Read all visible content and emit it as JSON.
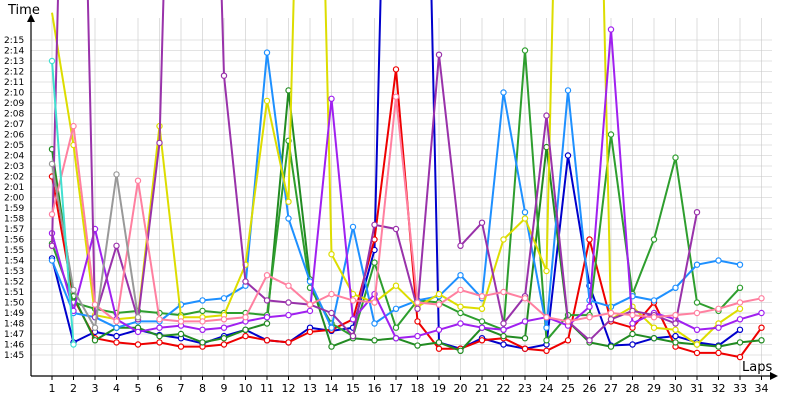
{
  "chart_data": {
    "type": "line",
    "title": "",
    "ylabel": "Time",
    "xlabel": "Laps",
    "x": [
      1,
      2,
      3,
      4,
      5,
      6,
      7,
      8,
      9,
      10,
      11,
      12,
      13,
      14,
      15,
      16,
      17,
      18,
      19,
      20,
      21,
      22,
      23,
      24,
      25,
      26,
      27,
      28,
      29,
      30,
      31,
      32,
      33,
      34
    ],
    "xlim": [
      0,
      34
    ],
    "ylim_seconds": [
      104,
      136
    ],
    "y_ticks": [
      "1:45",
      "1:46",
      "1:47",
      "1:48",
      "1:49",
      "1:50",
      "1:51",
      "1:52",
      "1:53",
      "1:54",
      "1:55",
      "1:56",
      "1:57",
      "1:58",
      "1:59",
      "2:00",
      "2:01",
      "2:02",
      "2:03",
      "2:04",
      "2:05",
      "2:06",
      "2:07",
      "2:08",
      "2:09",
      "2:10",
      "2:11",
      "2:12",
      "2:13",
      "2:14",
      "2:15"
    ],
    "x_ticks": [
      "1",
      "2",
      "3",
      "4",
      "5",
      "6",
      "7",
      "8",
      "9",
      "10",
      "11",
      "12",
      "13",
      "14",
      "15",
      "16",
      "17",
      "18",
      "19",
      "20",
      "21",
      "22",
      "23",
      "24",
      "25",
      "26",
      "27",
      "28",
      "29",
      "30",
      "31",
      "32",
      "33",
      "34"
    ],
    "grid": true,
    "legend": "none",
    "series": [
      {
        "color": "#0000cc",
        "values": [
          114.2,
          106.2,
          107.2,
          106.8,
          107.4,
          106.9,
          106.6,
          106.1,
          106.8,
          107.4,
          106.4,
          106.2,
          107.6,
          107.3,
          107.6,
          115,
          200,
          200,
          106.2,
          105.6,
          106.6,
          106.0,
          105.6,
          106.0,
          124.0,
          111.6,
          105.9,
          106.0,
          106.6,
          106.8,
          106.2,
          105.9,
          107.4,
          null
        ]
      },
      {
        "color": "#ee0000",
        "values": [
          122.0,
          110.4,
          106.6,
          106.2,
          106.0,
          106.2,
          105.8,
          105.8,
          106.0,
          106.8,
          106.4,
          106.2,
          107.2,
          107.4,
          108.4,
          116.0,
          132.2,
          108.2,
          105.6,
          105.6,
          106.4,
          106.6,
          105.6,
          105.4,
          106.4,
          116.0,
          108.2,
          107.6,
          110.0,
          105.8,
          105.2,
          105.2,
          104.8,
          107.6
        ]
      },
      {
        "color": "#228b22",
        "values": [
          124.6,
          110.6,
          106.4,
          107.6,
          107.6,
          106.8,
          107.0,
          106.2,
          106.6,
          107.4,
          108.0,
          130.2,
          112.2,
          105.8,
          106.6,
          106.4,
          106.6,
          105.9,
          106.2,
          105.4,
          107.6,
          106.8,
          106.6,
          124.8,
          108.2,
          106.2,
          105.8,
          107.0,
          106.6,
          106.2,
          106.0,
          105.8,
          106.2,
          106.4
        ]
      },
      {
        "color": "#2e9e2e",
        "values": [
          115.6,
          110.0,
          109.4,
          109.0,
          109.2,
          109.0,
          108.8,
          109.2,
          109.0,
          109.0,
          108.8,
          125.4,
          111.4,
          108.0,
          106.8,
          113.8,
          107.6,
          110.2,
          110.0,
          109.0,
          108.2,
          107.4,
          134.0,
          106.4,
          108.8,
          108.8,
          126.0,
          110.8,
          116.0,
          123.8,
          110.0,
          109.2,
          111.4,
          null
        ]
      },
      {
        "color": "#1e90ff",
        "values": [
          114.0,
          109.0,
          108.6,
          107.6,
          108.2,
          108.2,
          109.8,
          110.2,
          110.4,
          111.6,
          133.8,
          118.0,
          112.0,
          107.6,
          117.2,
          108.0,
          109.4,
          110.2,
          110.6,
          112.6,
          110.4,
          130.0,
          118.6,
          107.6,
          130.2,
          110.2,
          109.6,
          110.6,
          110.2,
          111.4,
          113.6,
          114.0,
          113.6,
          null
        ]
      },
      {
        "color": "#dddd00",
        "values": [
          137.6,
          125.0,
          108.8,
          108.4,
          108.6,
          126.8,
          108.6,
          108.6,
          108.8,
          113.6,
          129.2,
          119.6,
          200,
          114.6,
          110.8,
          110.0,
          111.6,
          109.6,
          110.8,
          109.6,
          109.4,
          116.0,
          118.0,
          113.0,
          200,
          200,
          108.4,
          109.6,
          107.6,
          107.4,
          106.0,
          108.0,
          109.4,
          null
        ]
      },
      {
        "color": "#a020f0",
        "values": [
          116.6,
          109.2,
          117.0,
          108.4,
          107.2,
          107.6,
          107.8,
          107.4,
          107.6,
          108.2,
          108.6,
          108.8,
          109.2,
          129.4,
          108.4,
          110.8,
          106.6,
          106.8,
          107.4,
          108.0,
          107.6,
          107.4,
          108.2,
          108.6,
          107.8,
          109.6,
          136.0,
          108.0,
          109.0,
          108.4,
          107.4,
          107.6,
          108.4,
          109.0
        ]
      },
      {
        "color": "#9932aa",
        "values": [
          115.4,
          200,
          108.6,
          115.4,
          108.4,
          125.2,
          200,
          200,
          131.6,
          112.0,
          110.2,
          110.0,
          109.8,
          109.0,
          106.8,
          117.4,
          117.0,
          109.4,
          133.6,
          115.4,
          117.6,
          108.0,
          110.6,
          127.8,
          108.2,
          106.4,
          108.4,
          109.2,
          108.8,
          108.0,
          118.6,
          null,
          null,
          null
        ]
      },
      {
        "color": "#d030d0",
        "values": [
          null,
          null,
          null,
          null,
          null,
          null,
          null,
          null,
          null,
          null,
          null,
          null,
          null,
          null,
          null,
          null,
          null,
          null,
          null,
          null,
          null,
          null,
          null,
          null,
          null,
          null,
          null,
          null,
          null,
          null,
          null,
          null,
          null,
          null
        ]
      },
      {
        "color": "#ff80a0",
        "values": [
          118.4,
          126.8,
          109.8,
          108.2,
          121.6,
          108.4,
          108.2,
          108.2,
          108.4,
          108.6,
          112.6,
          111.6,
          109.8,
          110.8,
          110.2,
          110.0,
          129.6,
          110.0,
          109.8,
          111.2,
          110.6,
          111.0,
          110.4,
          108.6,
          108.2,
          108.6,
          109.0,
          108.8,
          108.6,
          108.8,
          109.0,
          109.4,
          110.0,
          110.4
        ]
      },
      {
        "color": "#999999",
        "values": [
          123.2,
          111.2,
          107.6,
          122.2,
          108.6,
          null,
          null,
          null,
          null,
          null,
          null,
          null,
          null,
          null,
          null,
          null,
          null,
          null,
          null,
          null,
          null,
          null,
          null,
          null,
          null,
          null,
          null,
          null,
          null,
          null,
          null,
          null,
          null,
          null
        ]
      },
      {
        "color": "#40e0d0",
        "values": [
          133.0,
          106.0,
          null,
          null,
          null,
          null,
          null,
          null,
          null,
          null,
          null,
          null,
          null,
          null,
          null,
          null,
          null,
          null,
          null,
          null,
          null,
          null,
          null,
          null,
          null,
          null,
          null,
          null,
          null,
          null,
          null,
          null,
          null,
          null
        ]
      }
    ]
  }
}
